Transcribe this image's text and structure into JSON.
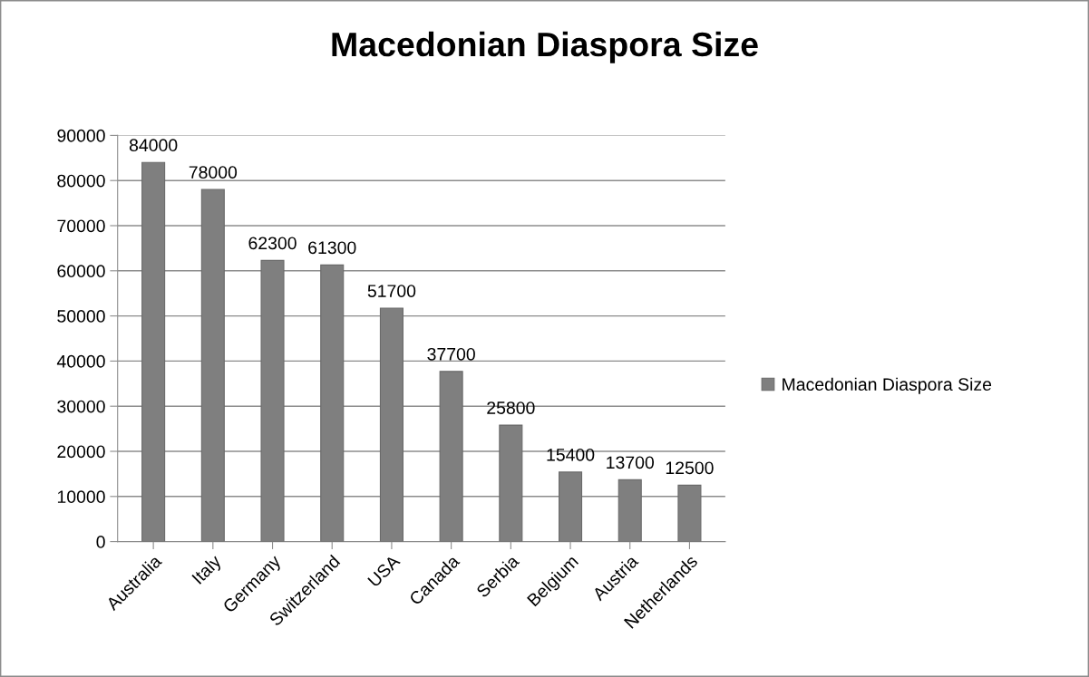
{
  "chart_data": {
    "type": "bar",
    "title": "Macedonian Diaspora Size",
    "categories": [
      "Australia",
      "Italy",
      "Germany",
      "Switzerland",
      "USA",
      "Canada",
      "Serbia",
      "Belgium",
      "Austria",
      "Netherlands"
    ],
    "series": [
      {
        "name": "Macedonian Diaspora Size",
        "color": "#7f7f7f",
        "values": [
          84000,
          78000,
          62300,
          61300,
          51700,
          37700,
          25800,
          15400,
          13700,
          12500
        ]
      }
    ],
    "ylim": [
      0,
      90000
    ],
    "yticks": [
      0,
      10000,
      20000,
      30000,
      40000,
      50000,
      60000,
      70000,
      80000,
      90000
    ],
    "grid": "y",
    "legend": "right",
    "data_labels": true
  }
}
